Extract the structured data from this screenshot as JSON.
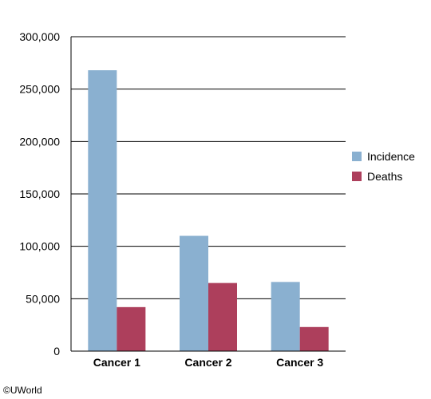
{
  "chart_data": {
    "type": "bar",
    "categories": [
      "Cancer 1",
      "Cancer 2",
      "Cancer 3"
    ],
    "series": [
      {
        "name": "Incidence",
        "values": [
          268000,
          110000,
          66000
        ],
        "color": "#8ab0d0"
      },
      {
        "name": "Deaths",
        "values": [
          42000,
          65000,
          23000
        ],
        "color": "#ad3f5c"
      }
    ],
    "yticks": [
      "0",
      "50,000",
      "100,000",
      "150,000",
      "200,000",
      "250,000",
      "300,000"
    ],
    "ylim": [
      0,
      300000
    ],
    "grid": true,
    "legend_position": "right"
  },
  "copyright": "©UWorld"
}
